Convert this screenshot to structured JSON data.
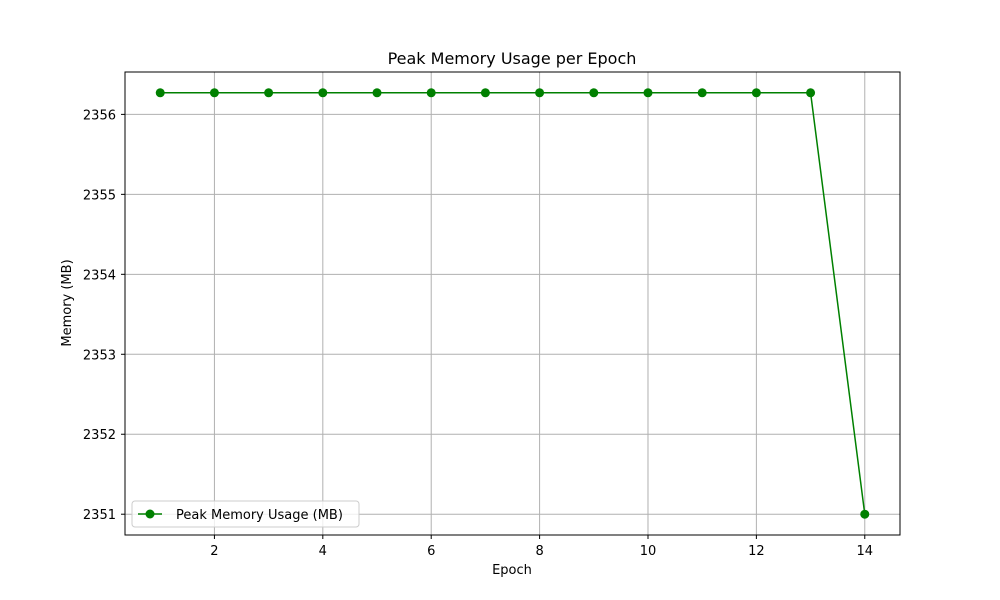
{
  "chart_data": {
    "type": "line",
    "title": "Peak Memory Usage per Epoch",
    "xlabel": "Epoch",
    "ylabel": "Memory (MB)",
    "xlim": [
      0.35,
      14.65
    ],
    "ylim": [
      2350.74,
      2356.53
    ],
    "x_ticks": [
      2,
      4,
      6,
      8,
      10,
      12,
      14
    ],
    "x_tick_labels": [
      "2",
      "4",
      "6",
      "8",
      "10",
      "12",
      "14"
    ],
    "y_ticks": [
      2351,
      2352,
      2353,
      2354,
      2355,
      2356
    ],
    "y_tick_labels": [
      "2351",
      "2352",
      "2353",
      "2354",
      "2355",
      "2356"
    ],
    "grid": true,
    "legend_position": "lower-left",
    "series": [
      {
        "name": "Peak Memory Usage (MB)",
        "color": "#008000",
        "marker": "circle",
        "x": [
          1,
          2,
          3,
          4,
          5,
          6,
          7,
          8,
          9,
          10,
          11,
          12,
          13,
          14
        ],
        "y": [
          2356.27,
          2356.27,
          2356.27,
          2356.27,
          2356.27,
          2356.27,
          2356.27,
          2356.27,
          2356.27,
          2356.27,
          2356.27,
          2356.27,
          2356.27,
          2351.0
        ]
      }
    ]
  }
}
